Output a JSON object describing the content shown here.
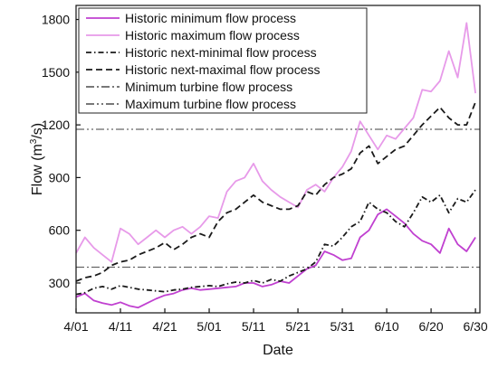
{
  "chart_data": {
    "type": "line",
    "xlabel": "Date",
    "ylabel_main": "Flow (m",
    "ylabel_sup": "3",
    "ylabel_tail": "/s)",
    "ylim": [
      130,
      1880
    ],
    "xlim": [
      0,
      91
    ],
    "yticks": [
      300,
      600,
      900,
      1200,
      1500,
      1800
    ],
    "xticks": [
      {
        "pos": 0,
        "label": "4/01"
      },
      {
        "pos": 10,
        "label": "4/11"
      },
      {
        "pos": 20,
        "label": "4/21"
      },
      {
        "pos": 30,
        "label": "5/01"
      },
      {
        "pos": 40,
        "label": "5/11"
      },
      {
        "pos": 50,
        "label": "5/21"
      },
      {
        "pos": 60,
        "label": "5/31"
      },
      {
        "pos": 70,
        "label": "6/10"
      },
      {
        "pos": 80,
        "label": "6/20"
      },
      {
        "pos": 90,
        "label": "6/30"
      }
    ],
    "legend_position": "top-left",
    "series": [
      {
        "name": "Historic minimum flow process",
        "color": "#c040d0",
        "dash": "solid",
        "x": [
          0,
          2,
          4,
          6,
          8,
          10,
          12,
          14,
          16,
          18,
          20,
          22,
          24,
          26,
          28,
          30,
          32,
          34,
          36,
          38,
          40,
          42,
          44,
          46,
          48,
          50,
          52,
          54,
          56,
          58,
          60,
          62,
          64,
          66,
          68,
          70,
          72,
          74,
          76,
          78,
          80,
          82,
          84,
          86,
          88,
          90
        ],
        "y": [
          220,
          240,
          200,
          185,
          175,
          190,
          170,
          160,
          185,
          210,
          230,
          240,
          260,
          270,
          260,
          265,
          270,
          275,
          280,
          300,
          300,
          280,
          290,
          310,
          300,
          340,
          380,
          400,
          480,
          460,
          430,
          440,
          560,
          600,
          690,
          720,
          680,
          640,
          580,
          540,
          520,
          470,
          610,
          520,
          480,
          560
        ]
      },
      {
        "name": "Historic maximum flow process",
        "color": "#e79ae9",
        "dash": "solid",
        "x": [
          0,
          2,
          4,
          6,
          8,
          10,
          12,
          14,
          16,
          18,
          20,
          22,
          24,
          26,
          28,
          30,
          32,
          34,
          36,
          38,
          40,
          42,
          44,
          46,
          48,
          50,
          52,
          54,
          56,
          58,
          60,
          62,
          64,
          66,
          68,
          70,
          72,
          74,
          76,
          78,
          80,
          82,
          84,
          86,
          88,
          90
        ],
        "y": [
          470,
          560,
          500,
          460,
          420,
          610,
          580,
          520,
          560,
          600,
          560,
          600,
          620,
          580,
          620,
          680,
          670,
          820,
          880,
          900,
          980,
          880,
          830,
          790,
          760,
          730,
          830,
          860,
          820,
          900,
          960,
          1050,
          1220,
          1140,
          1060,
          1140,
          1120,
          1180,
          1240,
          1400,
          1390,
          1450,
          1620,
          1470,
          1780,
          1380
        ]
      },
      {
        "name": "Historic next-minimal flow process",
        "color": "#1a1a1a",
        "dash": "6,3,1.5,3",
        "x": [
          0,
          2,
          4,
          6,
          8,
          10,
          12,
          14,
          16,
          18,
          20,
          22,
          24,
          26,
          28,
          30,
          32,
          34,
          36,
          38,
          40,
          42,
          44,
          46,
          48,
          50,
          52,
          54,
          56,
          58,
          60,
          62,
          64,
          66,
          68,
          70,
          72,
          74,
          76,
          78,
          80,
          82,
          84,
          86,
          88,
          90
        ],
        "y": [
          235,
          245,
          270,
          280,
          265,
          285,
          275,
          265,
          260,
          255,
          250,
          260,
          265,
          275,
          280,
          285,
          280,
          295,
          305,
          300,
          315,
          300,
          320,
          310,
          340,
          360,
          380,
          420,
          520,
          510,
          560,
          620,
          650,
          760,
          720,
          700,
          650,
          620,
          700,
          790,
          760,
          800,
          700,
          780,
          760,
          830
        ]
      },
      {
        "name": "Historic next-maximal flow process",
        "color": "#1a1a1a",
        "dash": "7,4",
        "x": [
          0,
          2,
          4,
          6,
          8,
          10,
          12,
          14,
          16,
          18,
          20,
          22,
          24,
          26,
          28,
          30,
          32,
          34,
          36,
          38,
          40,
          42,
          44,
          46,
          48,
          50,
          52,
          54,
          56,
          58,
          60,
          62,
          64,
          66,
          68,
          70,
          72,
          74,
          76,
          78,
          80,
          82,
          84,
          86,
          88,
          90
        ],
        "y": [
          310,
          330,
          340,
          360,
          400,
          420,
          430,
          460,
          480,
          500,
          530,
          490,
          520,
          560,
          580,
          560,
          650,
          700,
          720,
          760,
          800,
          760,
          740,
          720,
          720,
          740,
          820,
          800,
          860,
          900,
          920,
          950,
          1040,
          1080,
          980,
          1020,
          1060,
          1080,
          1140,
          1200,
          1250,
          1300,
          1240,
          1200,
          1200,
          1330
        ]
      }
    ],
    "reference_lines": [
      {
        "name": "Minimum turbine flow process",
        "value": 390,
        "color": "#666666",
        "dash": "9,3,2,3"
      },
      {
        "name": "Maximum turbine flow process",
        "value": 1175,
        "color": "#666666",
        "dash": "9,3,2,3,2,3"
      }
    ]
  }
}
